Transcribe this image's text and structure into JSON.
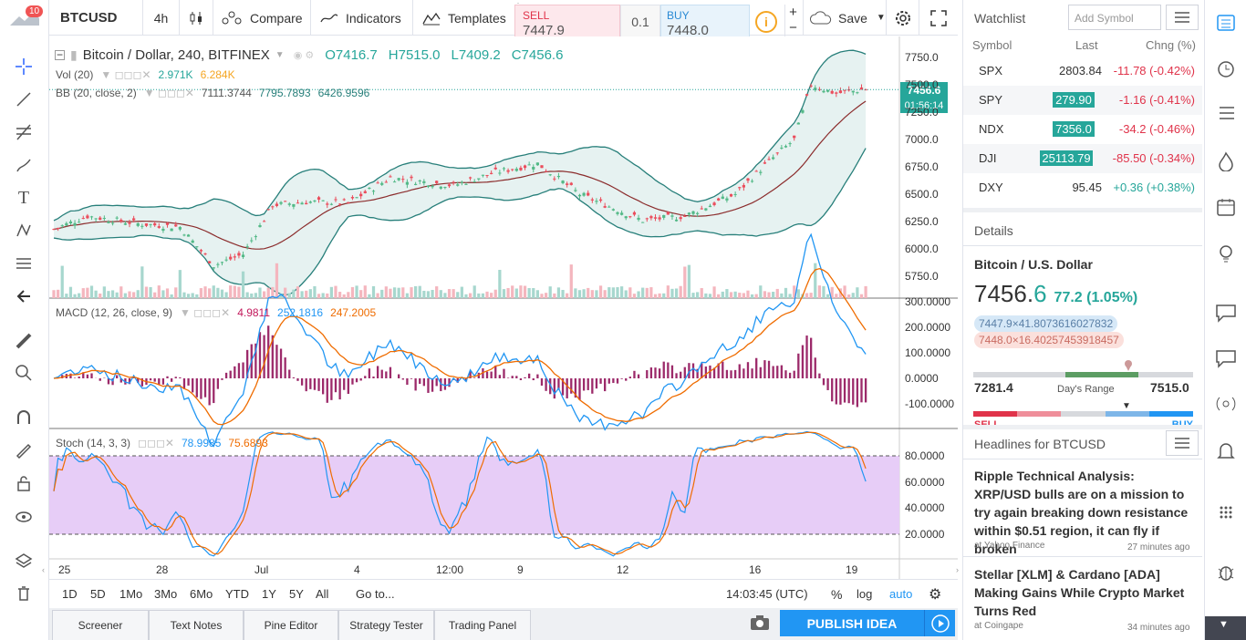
{
  "toolbar": {
    "symbol": "BTCUSD",
    "interval": "4h",
    "compare": "Compare",
    "indicators": "Indicators",
    "templates": "Templates",
    "sell_label": "SELL",
    "sell_price": "7447.9",
    "spread": "0.1",
    "buy_label": "BUY",
    "buy_price": "7448.0",
    "save": "Save",
    "alerts_badge": "10"
  },
  "chart": {
    "title": "Bitcoin / Dollar, 240, BITFINEX",
    "o": "O7416.7",
    "h": "H7515.0",
    "l": "L7409.2",
    "c": "C7456.6",
    "vol_label": "Vol (20)",
    "vol_v1": "2.971K",
    "vol_v2": "6.284K",
    "bb_label": "BB (20, close, 2)",
    "bb_v1": "7111.3744",
    "bb_v2": "7795.7893",
    "bb_v3": "6426.9596",
    "macd_label": "MACD (12, 26, close, 9)",
    "macd_v1": "4.9811",
    "macd_v2": "252.1816",
    "macd_v3": "247.2005",
    "stoch_label": "Stoch (14, 3, 3)",
    "stoch_v1": "78.9985",
    "stoch_v2": "75.6893",
    "price_ticks": [
      "7750.0",
      "7500.0",
      "7250.0",
      "7000.0",
      "6750.0",
      "6500.0",
      "6250.0",
      "6000.0",
      "5750.0"
    ],
    "last_price": "7456.6",
    "countdown": "01:56:14",
    "macd_ticks": [
      "300.0000",
      "200.0000",
      "100.0000",
      "0.0000",
      "-100.0000"
    ],
    "stoch_ticks": [
      "80.0000",
      "60.0000",
      "40.0000",
      "20.0000"
    ],
    "x_ticks": [
      "25",
      "28",
      "Jul",
      "4",
      "12:00",
      "9",
      "12",
      "16",
      "19"
    ]
  },
  "bottom": {
    "ranges": [
      "1D",
      "5D",
      "1Mo",
      "3Mo",
      "6Mo",
      "YTD",
      "1Y",
      "5Y",
      "All"
    ],
    "goto": "Go to...",
    "time": "14:03:45 (UTC)",
    "pct": "%",
    "log": "log",
    "auto": "auto",
    "tabs": [
      "Screener",
      "Text Notes",
      "Pine Editor",
      "Strategy Tester",
      "Trading Panel"
    ],
    "publish": "PUBLISH IDEA"
  },
  "watchlist": {
    "title": "Watchlist",
    "add_placeholder": "Add Symbol",
    "col_symbol": "Symbol",
    "col_last": "Last",
    "col_chng": "Chng (%)",
    "rows": [
      {
        "s": "SPX",
        "l": "2803.84",
        "c": "-11.78 (-0.42%)"
      },
      {
        "s": "SPY",
        "l": "279.90",
        "c": "-1.16 (-0.41%)"
      },
      {
        "s": "NDX",
        "l": "7356.0",
        "c": "-34.2 (-0.46%)"
      },
      {
        "s": "DJI",
        "l": "25113.79",
        "c": "-85.50 (-0.34%)"
      },
      {
        "s": "DXY",
        "l": "95.45",
        "c": "+0.36 (+0.38%)"
      }
    ]
  },
  "details": {
    "title": "Details",
    "name": "Bitcoin / U.S. Dollar",
    "price_main": "7456.",
    "price_last": "6",
    "change": "77.2 (1.05%)",
    "bid": "7447.9×41.8073616027832",
    "ask": "7448.0×16.40257453918457",
    "low": "7281.4",
    "range_label": "Day's Range",
    "high": "7515.0",
    "sell": "SELL",
    "buy": "BUY"
  },
  "headlines": {
    "title": "Headlines for BTCUSD",
    "items": [
      {
        "text": "Ripple Technical Analysis: XRP/USD bulls are on a mission to try again breaking down resistance within $0.51 region, it can fly if broken",
        "src": "at Yahoo Finance",
        "ago": "27 minutes ago"
      },
      {
        "text": "Stellar [XLM] & Cardano [ADA] Making Gains While Crypto Market Turns Red",
        "src": "at Coingape",
        "ago": "34 minutes ago"
      }
    ]
  }
}
